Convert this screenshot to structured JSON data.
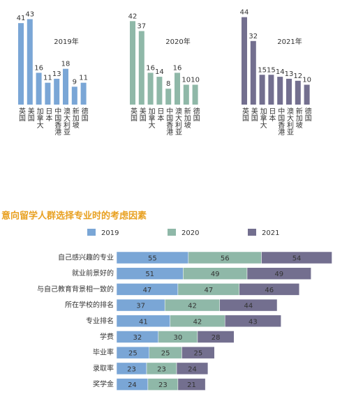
{
  "chart_data": [
    {
      "type": "bar",
      "title": "2019年",
      "color": "#7aa6d6",
      "categories": [
        "英国",
        "美国",
        "加拿大",
        "日本",
        "中国香港",
        "澳大利亚",
        "新加坡",
        "德国"
      ],
      "values": [
        41,
        43,
        16,
        11,
        13,
        18,
        9,
        11
      ]
    },
    {
      "type": "bar",
      "title": "2020年",
      "color": "#8fb8a8",
      "categories": [
        "英国",
        "美国",
        "加拿大",
        "日本",
        "中国香港",
        "澳大利亚",
        "新加坡",
        "德国"
      ],
      "values": [
        42,
        37,
        16,
        14,
        8,
        16,
        10,
        10
      ]
    },
    {
      "type": "bar",
      "title": "2021年",
      "color": "#736f8f",
      "categories": [
        "英国",
        "美国",
        "加拿大",
        "日本",
        "中国香港",
        "澳大利亚",
        "新加坡",
        "德国"
      ],
      "values": [
        44,
        32,
        15,
        15,
        14,
        13,
        12,
        10
      ]
    },
    {
      "type": "stacked_bar",
      "title": "意向留学人群选择专业时的考虑因素",
      "categories": [
        "自己感兴趣的专业",
        "就业前景好的",
        "与自己教育背景相一致的",
        "所在学校的排名",
        "专业排名",
        "学费",
        "毕业率",
        "录取率",
        "奖学金"
      ],
      "series": [
        {
          "name": "2019",
          "color": "#7aa6d6",
          "values": [
            55,
            51,
            47,
            37,
            41,
            32,
            25,
            23,
            24
          ]
        },
        {
          "name": "2020",
          "color": "#8fb8a8",
          "values": [
            56,
            49,
            47,
            42,
            42,
            30,
            25,
            23,
            23
          ]
        },
        {
          "name": "2021",
          "color": "#736f8f",
          "values": [
            54,
            49,
            46,
            44,
            43,
            28,
            25,
            24,
            21
          ]
        }
      ]
    }
  ]
}
